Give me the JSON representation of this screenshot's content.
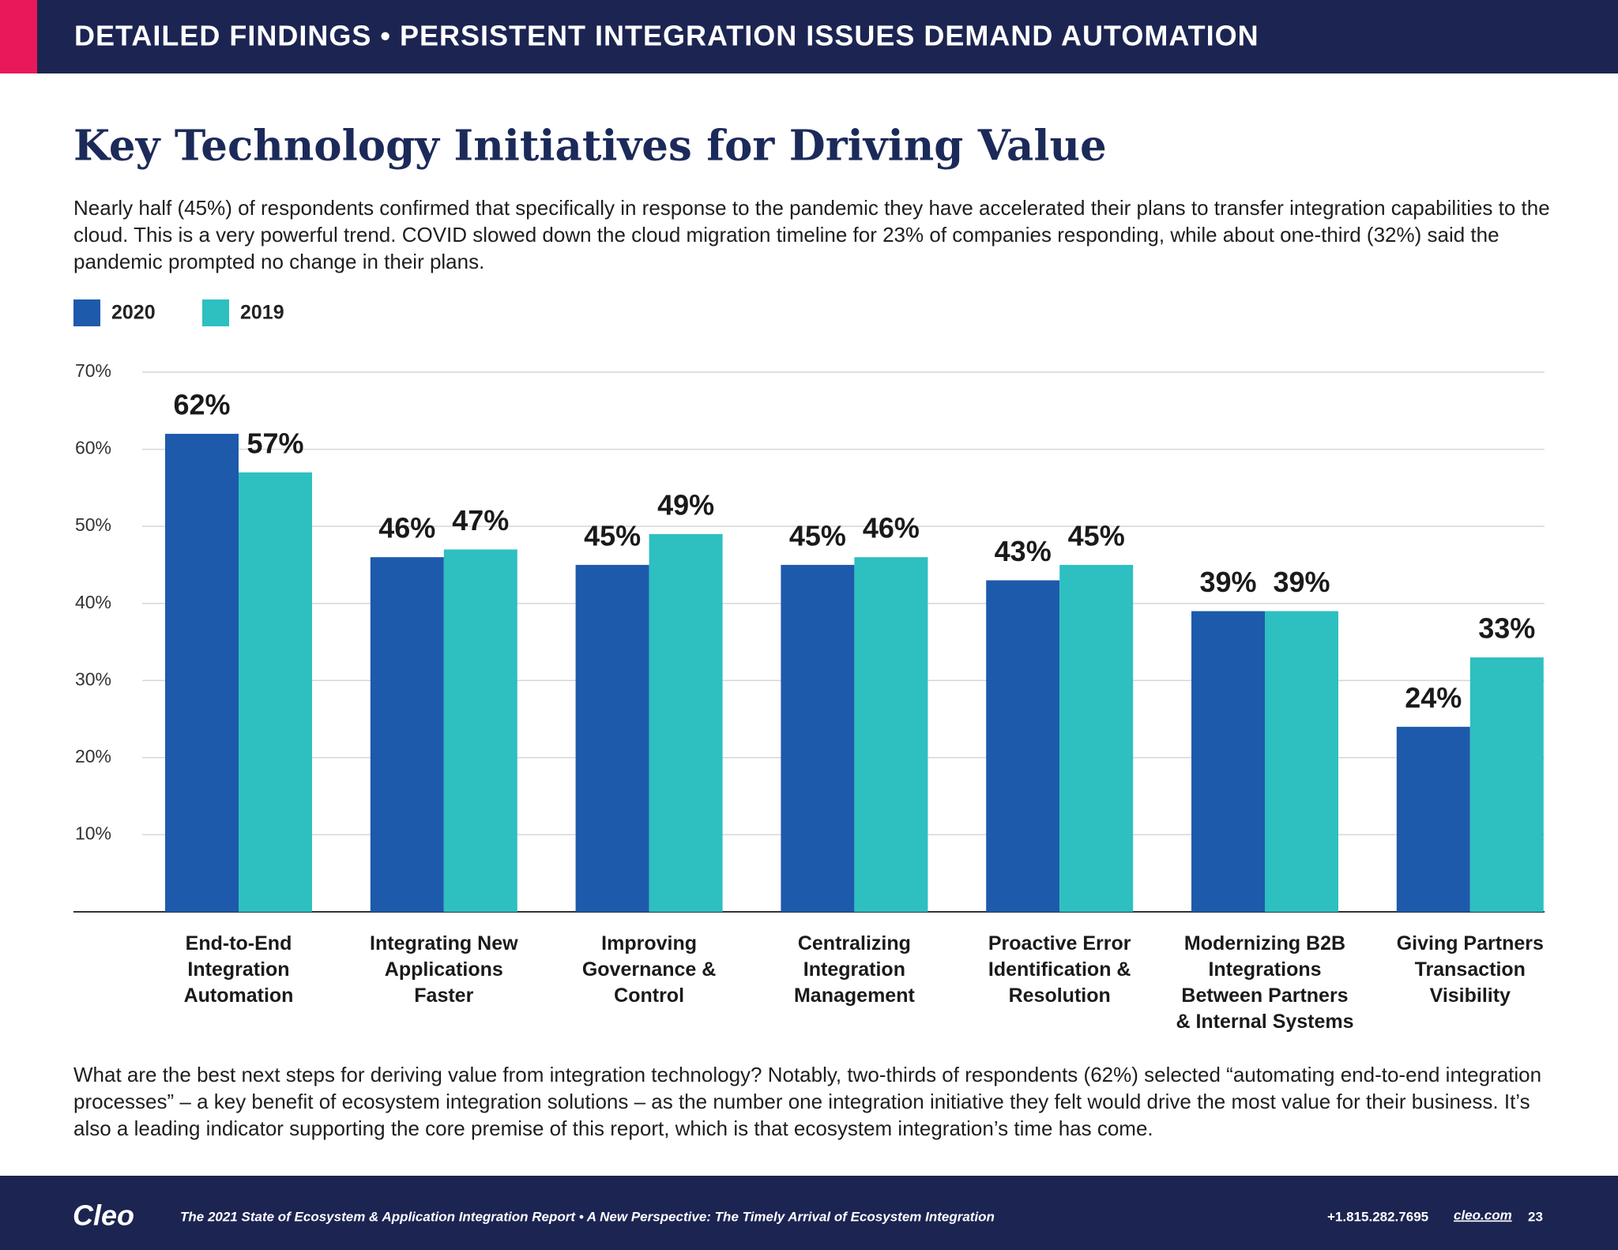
{
  "header": {
    "section": "DETAILED FINDINGS  • PERSISTENT INTEGRATION ISSUES DEMAND AUTOMATION"
  },
  "title": "Key Technology Initiatives for Driving Value",
  "intro": "Nearly half (45%) of respondents confirmed that specifically in response to the pandemic they have accelerated their plans to transfer integration capabilities to the cloud.  This is a very powerful trend.  COVID slowed down the cloud migration timeline for 23% of companies responding, while about one-third (32%) said the pandemic prompted no change in their plans.",
  "chart_data": {
    "type": "bar",
    "categories": [
      "End-to-End Integration Automation",
      "Integrating New Applications Faster",
      "Improving Governance & Control",
      "Centralizing Integration Management",
      "Proactive Error Identification & Resolution",
      "Modernizing B2B Integrations Between Partners & Internal Systems",
      "Giving Partners Transaction Visibility"
    ],
    "series": [
      {
        "name": "2020",
        "color": "#1d5aab",
        "values": [
          62,
          46,
          45,
          45,
          43,
          39,
          24
        ],
        "value_labels": [
          "62%",
          "46%",
          "45%",
          "45%",
          "43%",
          "39%",
          "24%"
        ]
      },
      {
        "name": "2019",
        "color": "#2ebfc1",
        "values": [
          57,
          47,
          49,
          46,
          45,
          39,
          33
        ],
        "value_labels": [
          "57%",
          "47%",
          "49%",
          "46%",
          "45%",
          "39%",
          "33%"
        ]
      }
    ],
    "ylim": [
      0,
      70
    ],
    "yticks": [
      {
        "value": 10,
        "label": "10%"
      },
      {
        "value": 20,
        "label": "20%"
      },
      {
        "value": 30,
        "label": "30%"
      },
      {
        "value": 40,
        "label": "40%"
      },
      {
        "value": 50,
        "label": "50%"
      },
      {
        "value": 60,
        "label": "60%"
      },
      {
        "value": 70,
        "label": "70%"
      }
    ],
    "grid": true,
    "legend": "top-left"
  },
  "conclusion": "What are the best next steps for deriving value from integration technology? Notably, two-thirds of respondents (62%) selected “automating end-to-end integration processes” – a key benefit of ecosystem integration solutions – as the number one integration initiative they felt would drive the most value for their business. It’s also a leading indicator supporting the core premise of this report, which is that ecosystem integration’s time has come.",
  "footer": {
    "logo": "Cleo",
    "report": "The 2021 State of Ecosystem & Application Integration Report  •  A New Perspective: The Timely Arrival of Ecosystem Integration",
    "phone": "+1.815.282.7695",
    "site": "cleo.com",
    "page": "23"
  }
}
